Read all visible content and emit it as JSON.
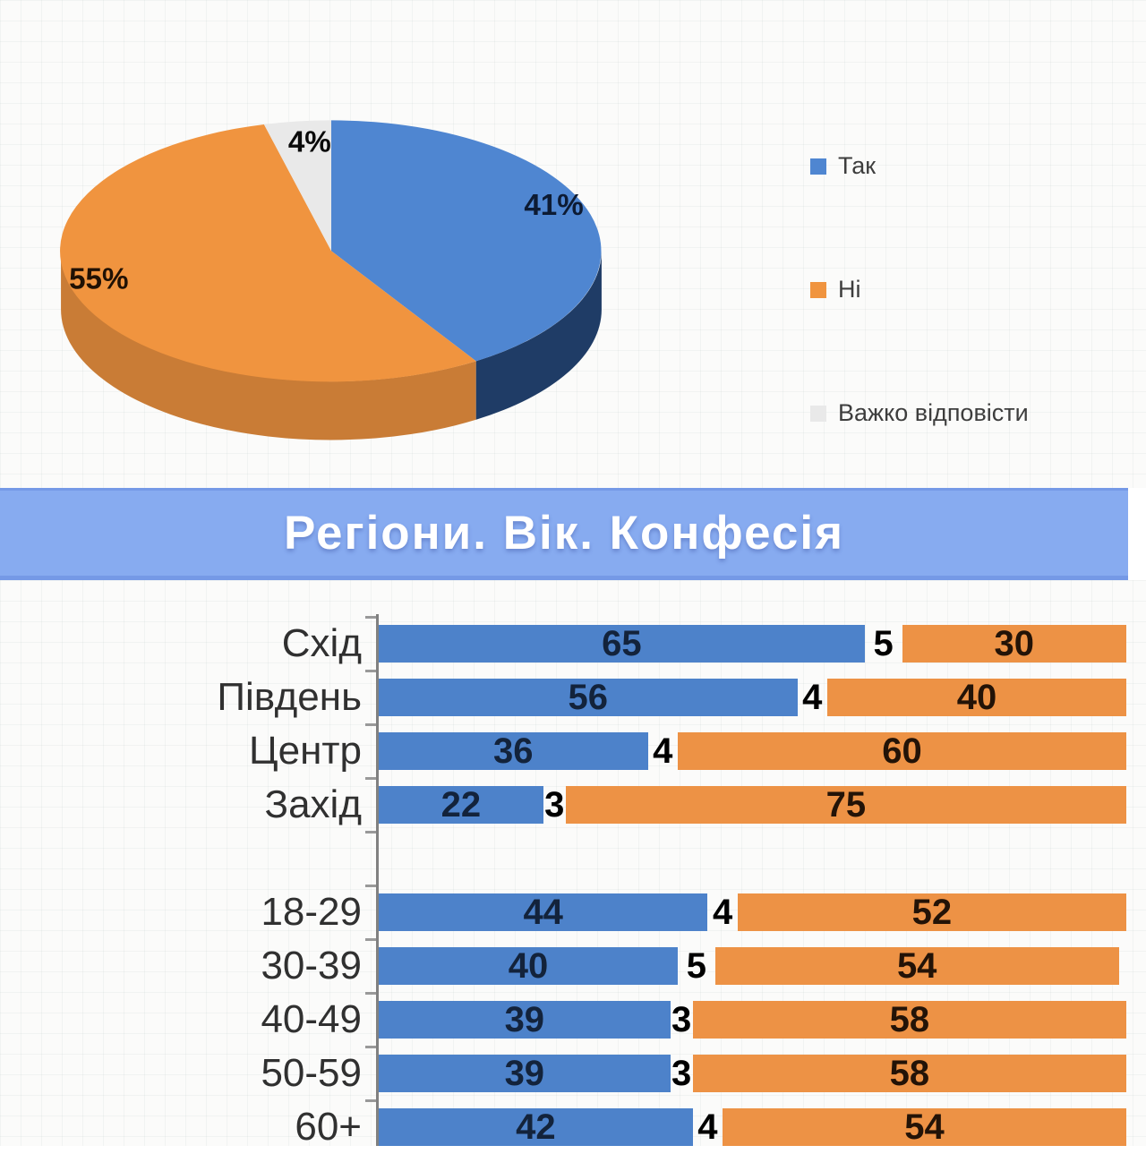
{
  "palette": {
    "pie_blue": "#4f86d1",
    "pie_orange": "#f0943f",
    "pie_gray": "#e9e9e9",
    "pie_blue_side": "#1f3c66",
    "pie_orange_side": "#c97c36",
    "bar_blue": "#4d82ca",
    "bar_orange": "#ed9245",
    "banner_bg": "#87abf0",
    "banner_text": "#ffffff",
    "num_on_blue": "#13233b",
    "num_on_orange": "#231307",
    "num_on_gap": "#000000",
    "pie_label_blue": "#0d1b33",
    "pie_label_orange": "#201104",
    "pie_label_gray": "#0a0a0a"
  },
  "banner": {
    "title": "Регіони. Вік. Конфесія"
  },
  "chart_data": [
    {
      "type": "pie",
      "style": "3d",
      "labels": [
        "Так",
        "Ні",
        "Важко відповісти"
      ],
      "values": [
        41,
        55,
        4
      ],
      "value_labels": [
        "41%",
        "55%",
        "4%"
      ],
      "unit": "%",
      "legend_position": "right"
    },
    {
      "type": "bar",
      "orientation": "horizontal-stacked",
      "series": [
        "Так",
        "Важко відповісти",
        "Ні"
      ],
      "xlim": [
        0,
        100
      ],
      "groups": [
        {
          "rows": [
            {
              "category": "Схід",
              "values": [
                65,
                5,
                30
              ]
            },
            {
              "category": "Південь",
              "values": [
                56,
                4,
                40
              ]
            },
            {
              "category": "Центр",
              "values": [
                36,
                4,
                60
              ]
            },
            {
              "category": "Захід",
              "values": [
                22,
                3,
                75
              ]
            }
          ]
        },
        {
          "rows": [
            {
              "category": "18-29",
              "values": [
                44,
                4,
                52
              ]
            },
            {
              "category": "30-39",
              "values": [
                40,
                5,
                54
              ]
            },
            {
              "category": "40-49",
              "values": [
                39,
                3,
                58
              ]
            },
            {
              "category": "50-59",
              "values": [
                39,
                3,
                58
              ]
            },
            {
              "category": "60+",
              "values": [
                42,
                4,
                54
              ]
            }
          ]
        }
      ]
    }
  ]
}
